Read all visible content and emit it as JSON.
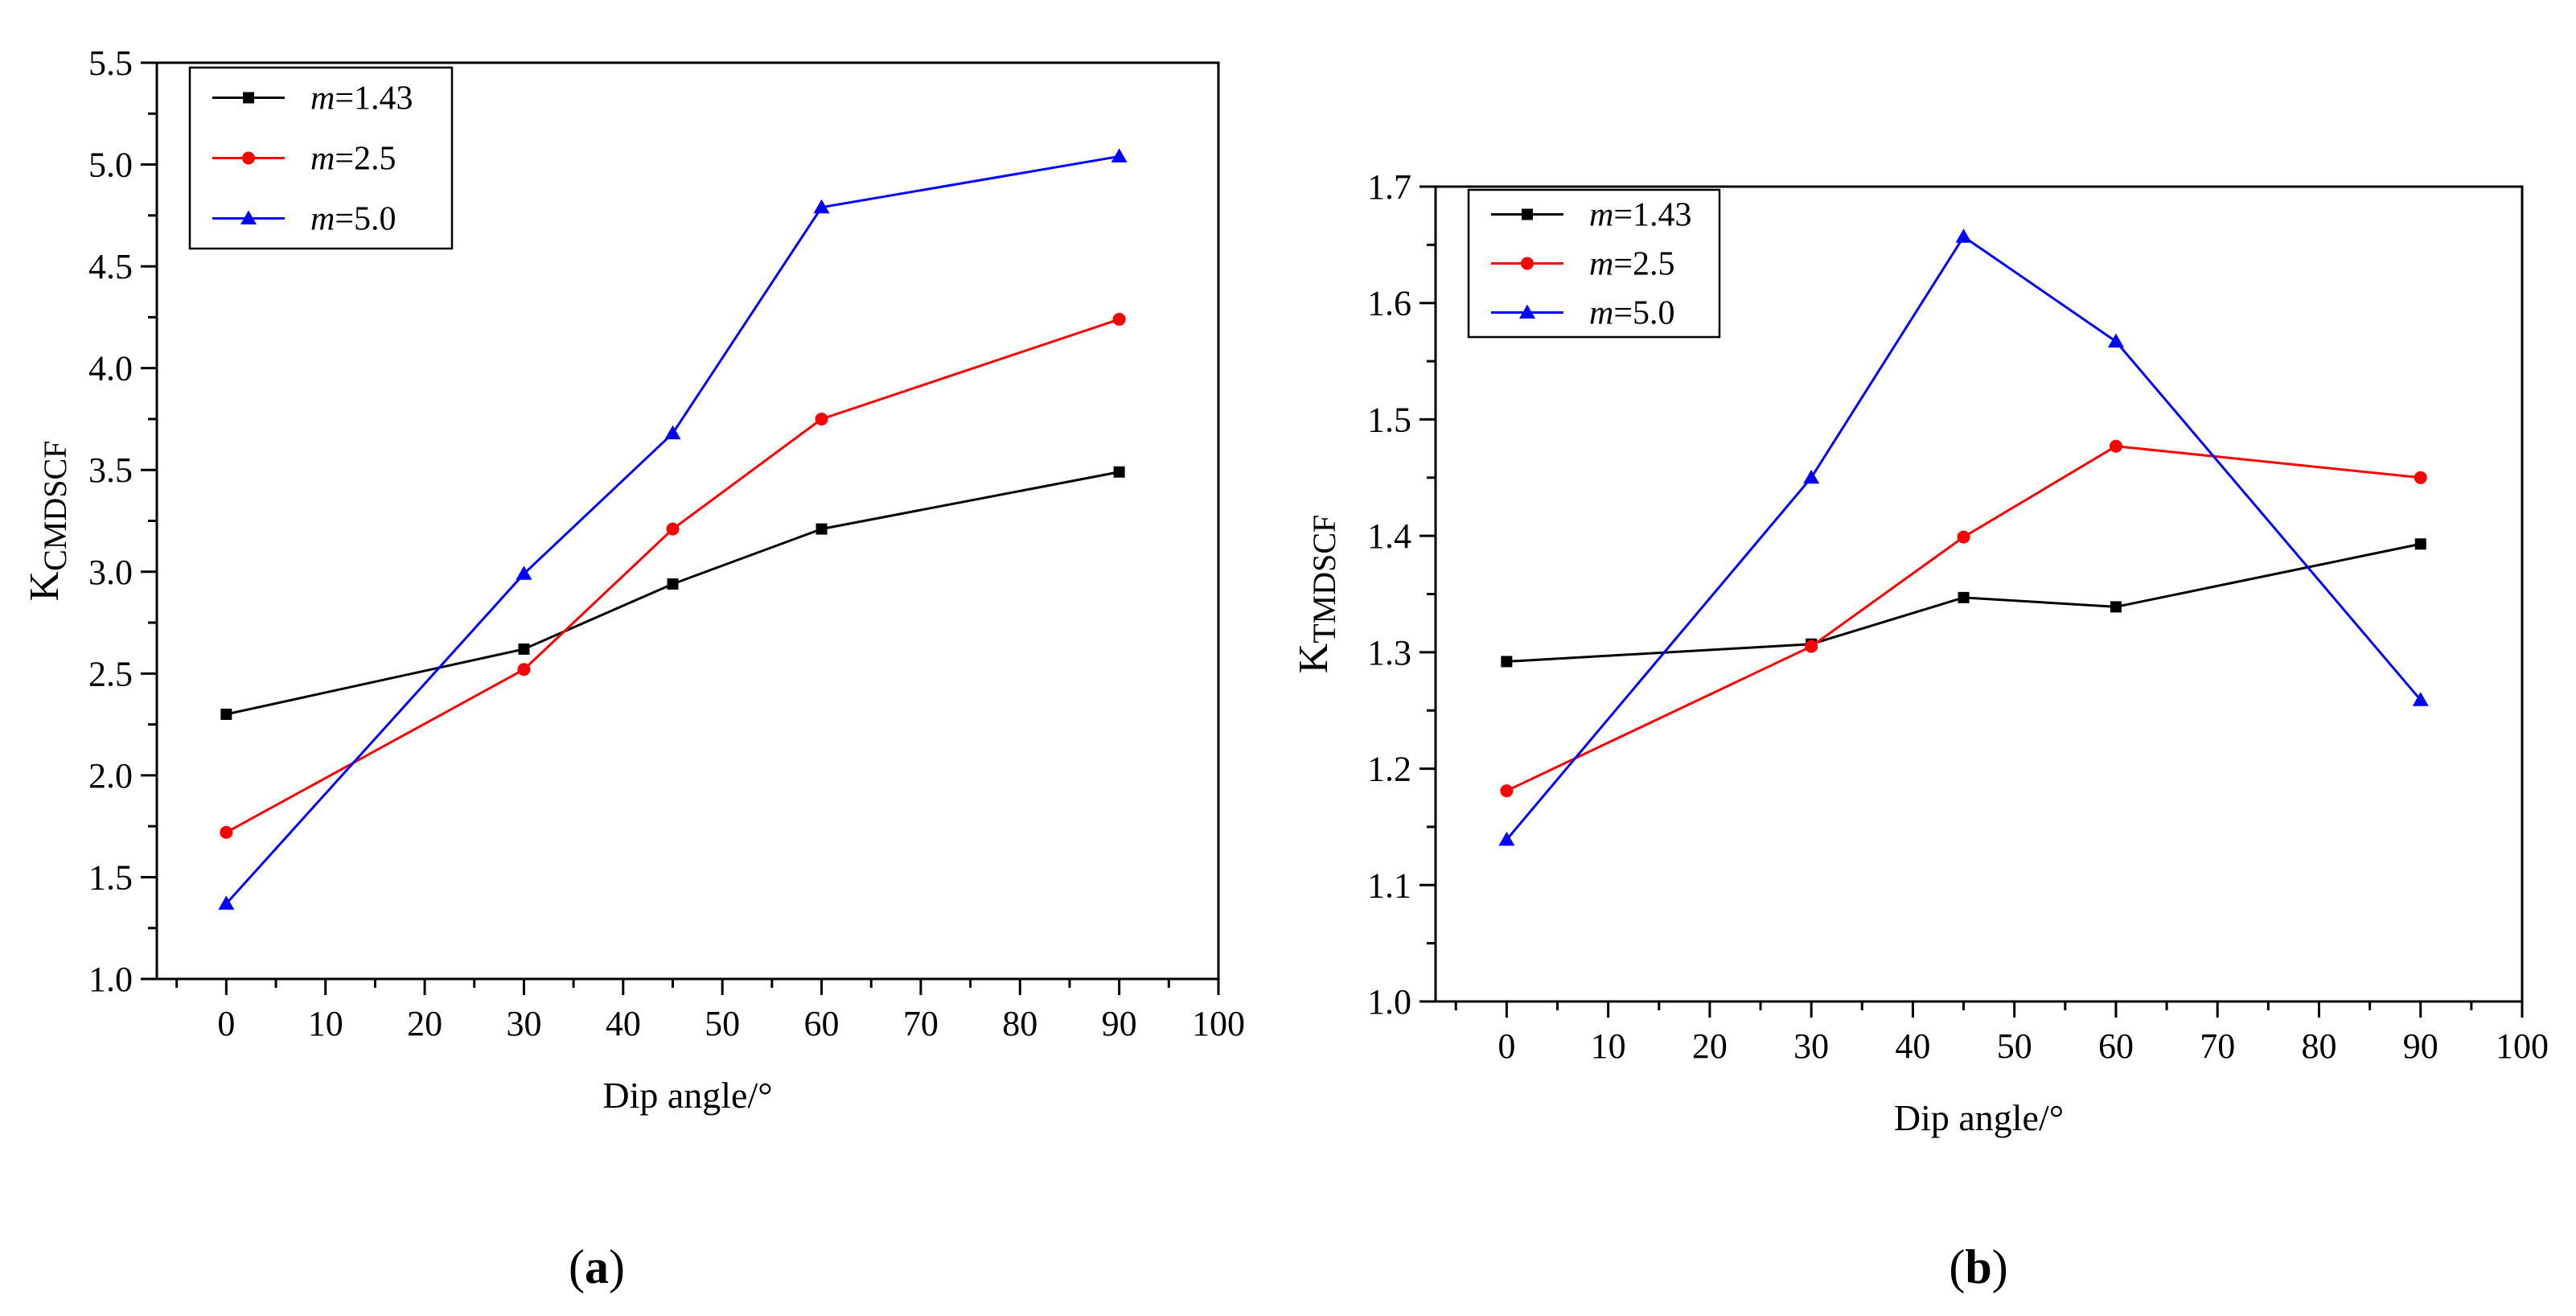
{
  "chart_data": [
    {
      "type": "line",
      "panel_label_open": "(",
      "panel_label_letter": "a",
      "panel_label_close": ")",
      "ylabel_main": "K",
      "ylabel_sub": "CMDSCF",
      "xlabel": "Dip angle/°",
      "xlim": [
        -7,
        100
      ],
      "ylim": [
        1.0,
        5.5
      ],
      "xticks": [
        0,
        10,
        20,
        30,
        40,
        50,
        60,
        70,
        80,
        90,
        100
      ],
      "yticks": [
        "1.0",
        "1.5",
        "2.0",
        "2.5",
        "3.0",
        "3.5",
        "4.0",
        "4.5",
        "5.0",
        "5.5"
      ],
      "legend_position": "top-left",
      "x": [
        0,
        30,
        45,
        60,
        90
      ],
      "series": [
        {
          "name_prefix": "m",
          "name_suffix": "=1.43",
          "color": "#000000",
          "marker": "square",
          "values": [
            2.3,
            2.62,
            2.94,
            3.21,
            3.49
          ]
        },
        {
          "name_prefix": "m",
          "name_suffix": "=2.5",
          "color": "#ff0000",
          "marker": "circle",
          "values": [
            1.72,
            2.52,
            3.21,
            3.75,
            4.24
          ]
        },
        {
          "name_prefix": "m",
          "name_suffix": "=5.0",
          "color": "#0000ff",
          "marker": "triangle",
          "values": [
            1.37,
            2.99,
            3.68,
            4.79,
            5.04
          ]
        }
      ]
    },
    {
      "type": "line",
      "panel_label_open": "(",
      "panel_label_letter": "b",
      "panel_label_close": ")",
      "ylabel_main": "K",
      "ylabel_sub": "TMDSCF",
      "xlabel": "Dip angle/°",
      "xlim": [
        -7,
        100
      ],
      "ylim": [
        1.0,
        1.7
      ],
      "xticks": [
        0,
        10,
        20,
        30,
        40,
        50,
        60,
        70,
        80,
        90,
        100
      ],
      "yticks": [
        "1.0",
        "1.1",
        "1.2",
        "1.3",
        "1.4",
        "1.5",
        "1.6",
        "1.7"
      ],
      "legend_position": "top-left",
      "x": [
        0,
        30,
        45,
        60,
        90
      ],
      "series": [
        {
          "name_prefix": "m",
          "name_suffix": "=1.43",
          "color": "#000000",
          "marker": "square",
          "values": [
            1.292,
            1.307,
            1.347,
            1.339,
            1.393
          ]
        },
        {
          "name_prefix": "m",
          "name_suffix": "=2.5",
          "color": "#ff0000",
          "marker": "circle",
          "values": [
            1.181,
            1.305,
            1.399,
            1.477,
            1.45
          ]
        },
        {
          "name_prefix": "m",
          "name_suffix": "=5.0",
          "color": "#0000ff",
          "marker": "triangle",
          "values": [
            1.139,
            1.45,
            1.657,
            1.567,
            1.259
          ]
        }
      ]
    }
  ]
}
